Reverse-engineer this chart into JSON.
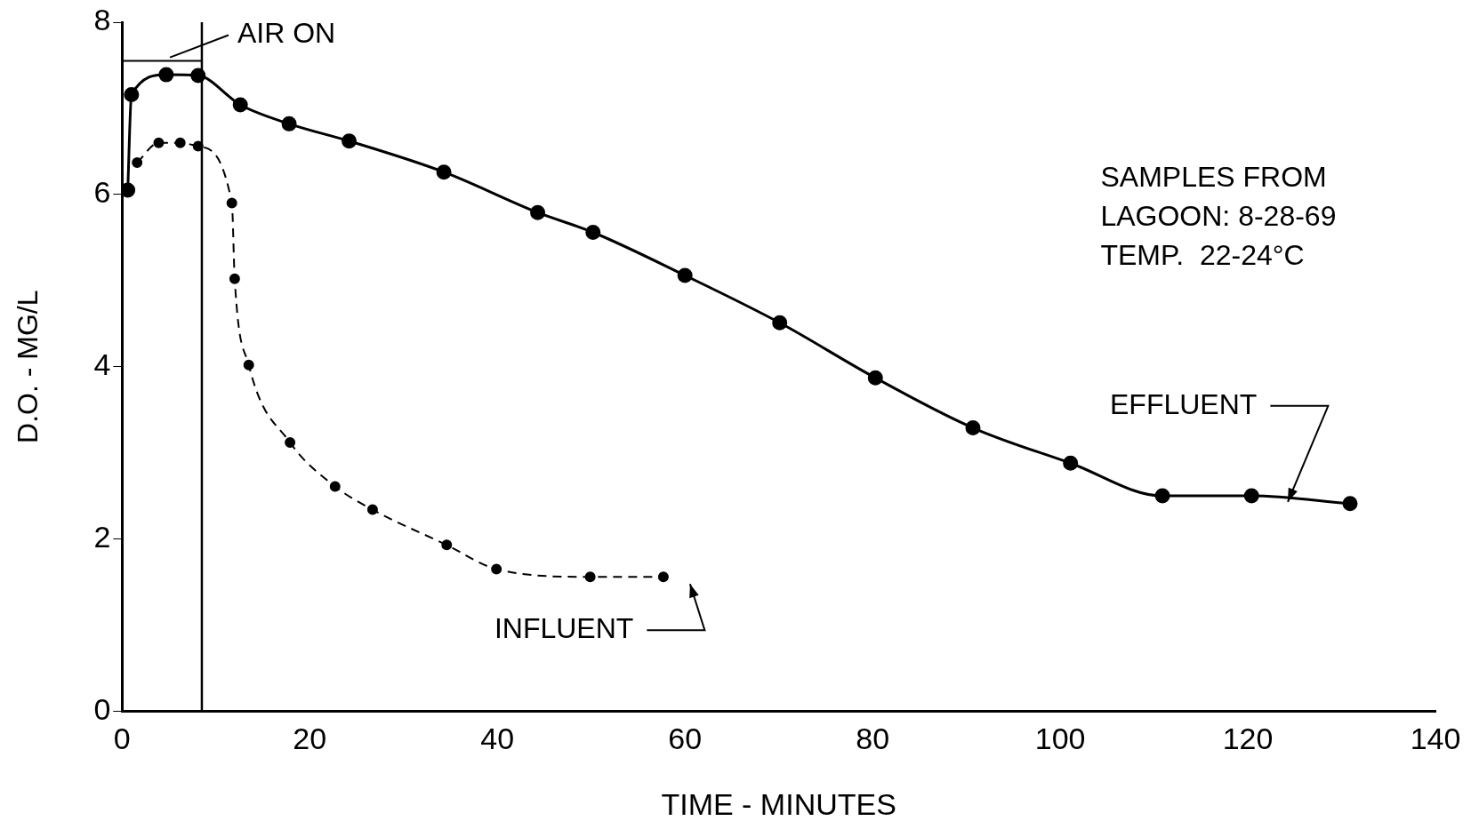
{
  "chart_data": {
    "type": "line",
    "xlabel": "TIME - MINUTES",
    "ylabel": "D.O. - MG/L",
    "xlim": [
      0,
      140
    ],
    "xticks": [
      0,
      20,
      40,
      60,
      80,
      100,
      120,
      140
    ],
    "ylim": [
      0,
      8
    ],
    "yticks": [
      0,
      2,
      4,
      6,
      8
    ],
    "grid": false,
    "legend": false,
    "marker": "circle",
    "series": [
      {
        "name": "EFFLUENT",
        "color": "#000000",
        "line_style": "solid",
        "x": [
          0.6,
          1.0,
          4.7,
          8.1,
          12.6,
          17.8,
          24.2,
          34.3,
          44.3,
          50.2,
          60.0,
          70.1,
          80.3,
          90.7,
          101.1,
          110.9,
          120.4,
          130.9
        ],
        "values": [
          6.05,
          7.16,
          7.39,
          7.38,
          7.04,
          6.82,
          6.62,
          6.26,
          5.79,
          5.56,
          5.06,
          4.51,
          3.87,
          3.29,
          2.88,
          2.5,
          2.5,
          2.41
        ]
      },
      {
        "name": "INFLUENT",
        "color": "#000000",
        "line_style": "dashed",
        "x": [
          1.6,
          3.9,
          6.2,
          8.1,
          11.7,
          12.0,
          13.5,
          17.9,
          22.7,
          26.7,
          34.6,
          39.9,
          49.9,
          57.7
        ],
        "values": [
          6.37,
          6.6,
          6.6,
          6.56,
          5.9,
          5.02,
          4.02,
          3.12,
          2.61,
          2.34,
          1.93,
          1.65,
          1.56,
          1.56
        ]
      },
      {
        "color": "#000000",
        "line_style": "solid",
        "marker": "none",
        "x": [
          0,
          8.5
        ],
        "values": [
          7.55,
          7.55
        ]
      }
    ],
    "ref_lines": [
      {
        "axis": "x",
        "value": 8.5,
        "label": "AIR ON",
        "color": "#000000"
      }
    ],
    "annotations": [
      "SAMPLES FROM\nLAGOON: 8-28-69\nTEMP.  22-24°C"
    ]
  }
}
